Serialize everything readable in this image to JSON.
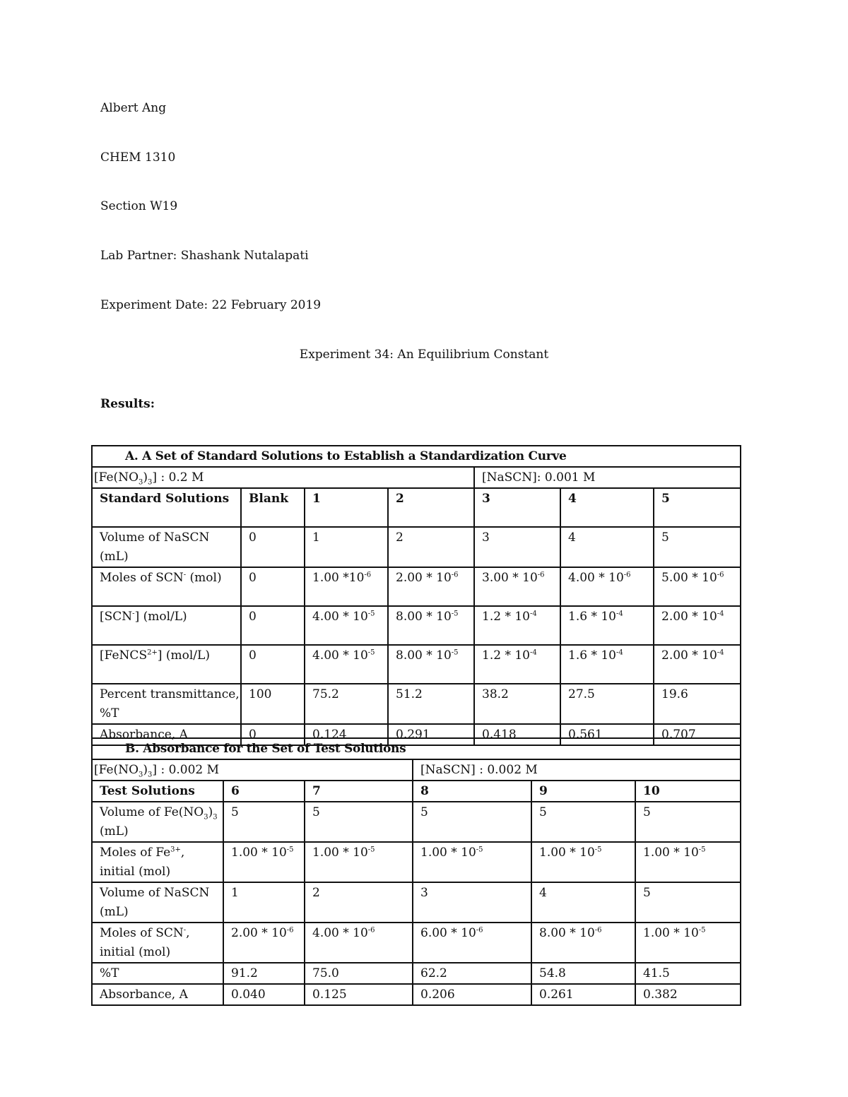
{
  "header": {
    "name": "Albert Ang",
    "course": "CHEM 1310",
    "section": "Section W19",
    "partner": "Lab Partner: Shashank Nutalapati",
    "date": "Experiment Date: 22 February 2019",
    "title": "Experiment 34: An Equilibrium Constant",
    "results": "Results:"
  },
  "tableA": {
    "title": "A.  A Set of Standard Solutions to Establish a Standardization Curve",
    "conc_left": [
      {
        "t": "[Fe(NO"
      },
      {
        "sub": "3"
      },
      {
        "t": ")"
      },
      {
        "sub": "3"
      },
      {
        "t": "] : 0.2 M"
      }
    ],
    "conc_right": [
      {
        "t": "[NaSCN]: 0.001 M"
      }
    ],
    "header": [
      "Standard Solutions",
      "Blank",
      "1",
      "2",
      "3",
      "4",
      "5"
    ],
    "rows": [
      {
        "label": [
          {
            "t": "Volume of NaSCN (mL)"
          }
        ],
        "cells": [
          [
            {
              "t": "0"
            }
          ],
          [
            {
              "t": "1"
            }
          ],
          [
            {
              "t": "2"
            }
          ],
          [
            {
              "t": "3"
            }
          ],
          [
            {
              "t": "4"
            }
          ],
          [
            {
              "t": "5"
            }
          ]
        ]
      },
      {
        "label": [
          {
            "t": "Moles of SCN"
          },
          {
            "sup": "-"
          },
          {
            "t": " (mol)"
          }
        ],
        "cells": [
          [
            {
              "t": "0"
            }
          ],
          [
            {
              "t": "1.00 *10"
            },
            {
              "sup": "-6"
            }
          ],
          [
            {
              "t": "2.00 * 10"
            },
            {
              "sup": "-6"
            }
          ],
          [
            {
              "t": "3.00 * 10"
            },
            {
              "sup": "-6"
            }
          ],
          [
            {
              "t": "4.00 * 10"
            },
            {
              "sup": "-6"
            }
          ],
          [
            {
              "t": "5.00 * 10"
            },
            {
              "sup": "-6"
            }
          ]
        ]
      },
      {
        "label": [
          {
            "t": "[SCN"
          },
          {
            "sup": "-"
          },
          {
            "t": "] (mol/L)"
          }
        ],
        "cells": [
          [
            {
              "t": "0"
            }
          ],
          [
            {
              "t": "4.00 * 10"
            },
            {
              "sup": "-5"
            }
          ],
          [
            {
              "t": "8.00 * 10"
            },
            {
              "sup": "-5"
            }
          ],
          [
            {
              "t": "1.2 * 10"
            },
            {
              "sup": "-4"
            }
          ],
          [
            {
              "t": "1.6 * 10"
            },
            {
              "sup": "-4"
            }
          ],
          [
            {
              "t": "2.00 * 10"
            },
            {
              "sup": "-4"
            }
          ]
        ]
      },
      {
        "label": [
          {
            "t": "[FeNCS"
          },
          {
            "sup": "2+"
          },
          {
            "t": "] (mol/L)"
          }
        ],
        "cells": [
          [
            {
              "t": "0"
            }
          ],
          [
            {
              "t": "4.00 * 10"
            },
            {
              "sup": "-5"
            }
          ],
          [
            {
              "t": "8.00 * 10"
            },
            {
              "sup": "-5"
            }
          ],
          [
            {
              "t": "1.2 * 10"
            },
            {
              "sup": "-4"
            }
          ],
          [
            {
              "t": "1.6 * 10"
            },
            {
              "sup": "-4"
            }
          ],
          [
            {
              "t": "2.00 * 10"
            },
            {
              "sup": "-4"
            }
          ]
        ]
      },
      {
        "label": [
          {
            "t": "Percent transmittance, %T"
          }
        ],
        "cells": [
          [
            {
              "t": "100"
            }
          ],
          [
            {
              "t": "75.2"
            }
          ],
          [
            {
              "t": "51.2"
            }
          ],
          [
            {
              "t": "38.2"
            }
          ],
          [
            {
              "t": "27.5"
            }
          ],
          [
            {
              "t": "19.6"
            }
          ]
        ]
      },
      {
        "label": [
          {
            "t": "Absorbance, A"
          }
        ],
        "cells": [
          [
            {
              "t": "0"
            }
          ],
          [
            {
              "t": "0.124"
            }
          ],
          [
            {
              "t": "0.291"
            }
          ],
          [
            {
              "t": "0.418"
            }
          ],
          [
            {
              "t": "0.561"
            }
          ],
          [
            {
              "t": "0.707"
            }
          ]
        ]
      }
    ]
  },
  "tableB": {
    "title": "B.  Absorbance for the Set of Test Solutions",
    "conc_left": [
      {
        "t": "[Fe(NO"
      },
      {
        "sub": "3"
      },
      {
        "t": ")"
      },
      {
        "sub": "3"
      },
      {
        "t": "] : 0.002 M"
      }
    ],
    "conc_right": [
      {
        "t": "[NaSCN] : 0.002 M"
      }
    ],
    "header": [
      "Test Solutions",
      "6",
      "7",
      "8",
      "9",
      "10"
    ],
    "rows": [
      {
        "label": [
          {
            "t": "Volume of Fe(NO"
          },
          {
            "sub": "3"
          },
          {
            "t": ")"
          },
          {
            "sub": "3"
          },
          {
            "t": " (mL)"
          }
        ],
        "cells": [
          [
            {
              "t": "5"
            }
          ],
          [
            {
              "t": "5"
            }
          ],
          [
            {
              "t": "5"
            }
          ],
          [
            {
              "t": "5"
            }
          ],
          [
            {
              "t": "5"
            }
          ]
        ]
      },
      {
        "label": [
          {
            "t": "Moles of Fe"
          },
          {
            "sup": "3+"
          },
          {
            "t": ", initial (mol)"
          }
        ],
        "cells": [
          [
            {
              "t": "1.00 * 10"
            },
            {
              "sup": "-5"
            }
          ],
          [
            {
              "t": "1.00 * 10"
            },
            {
              "sup": "-5"
            }
          ],
          [
            {
              "t": "1.00 * 10"
            },
            {
              "sup": "-5"
            }
          ],
          [
            {
              "t": "1.00 * 10"
            },
            {
              "sup": "-5"
            }
          ],
          [
            {
              "t": "1.00 * 10"
            },
            {
              "sup": "-5"
            }
          ]
        ]
      },
      {
        "label": [
          {
            "t": "Volume of NaSCN (mL)"
          }
        ],
        "cells": [
          [
            {
              "t": "1"
            }
          ],
          [
            {
              "t": "2"
            }
          ],
          [
            {
              "t": "3"
            }
          ],
          [
            {
              "t": "4"
            }
          ],
          [
            {
              "t": "5"
            }
          ]
        ]
      },
      {
        "label": [
          {
            "t": "Moles of SCN"
          },
          {
            "sup": "-"
          },
          {
            "t": ", initial (mol)"
          }
        ],
        "cells": [
          [
            {
              "t": "2.00 * 10"
            },
            {
              "sup": "-6"
            }
          ],
          [
            {
              "t": "4.00 * 10"
            },
            {
              "sup": "-6"
            }
          ],
          [
            {
              "t": "6.00 * 10"
            },
            {
              "sup": "-6"
            }
          ],
          [
            {
              "t": "8.00 * 10"
            },
            {
              "sup": "-6"
            }
          ],
          [
            {
              "t": "1.00 * 10"
            },
            {
              "sup": "-5"
            }
          ]
        ]
      },
      {
        "label": [
          {
            "t": "%T"
          }
        ],
        "cells": [
          [
            {
              "t": "91.2"
            }
          ],
          [
            {
              "t": "75.0"
            }
          ],
          [
            {
              "t": "62.2"
            }
          ],
          [
            {
              "t": "54.8"
            }
          ],
          [
            {
              "t": "41.5"
            }
          ]
        ]
      },
      {
        "label": [
          {
            "t": "Absorbance, A"
          }
        ],
        "cells": [
          [
            {
              "t": "0.040"
            }
          ],
          [
            {
              "t": "0.125"
            }
          ],
          [
            {
              "t": "0.206"
            }
          ],
          [
            {
              "t": "0.261"
            }
          ],
          [
            {
              "t": "0.382"
            }
          ]
        ]
      }
    ]
  }
}
